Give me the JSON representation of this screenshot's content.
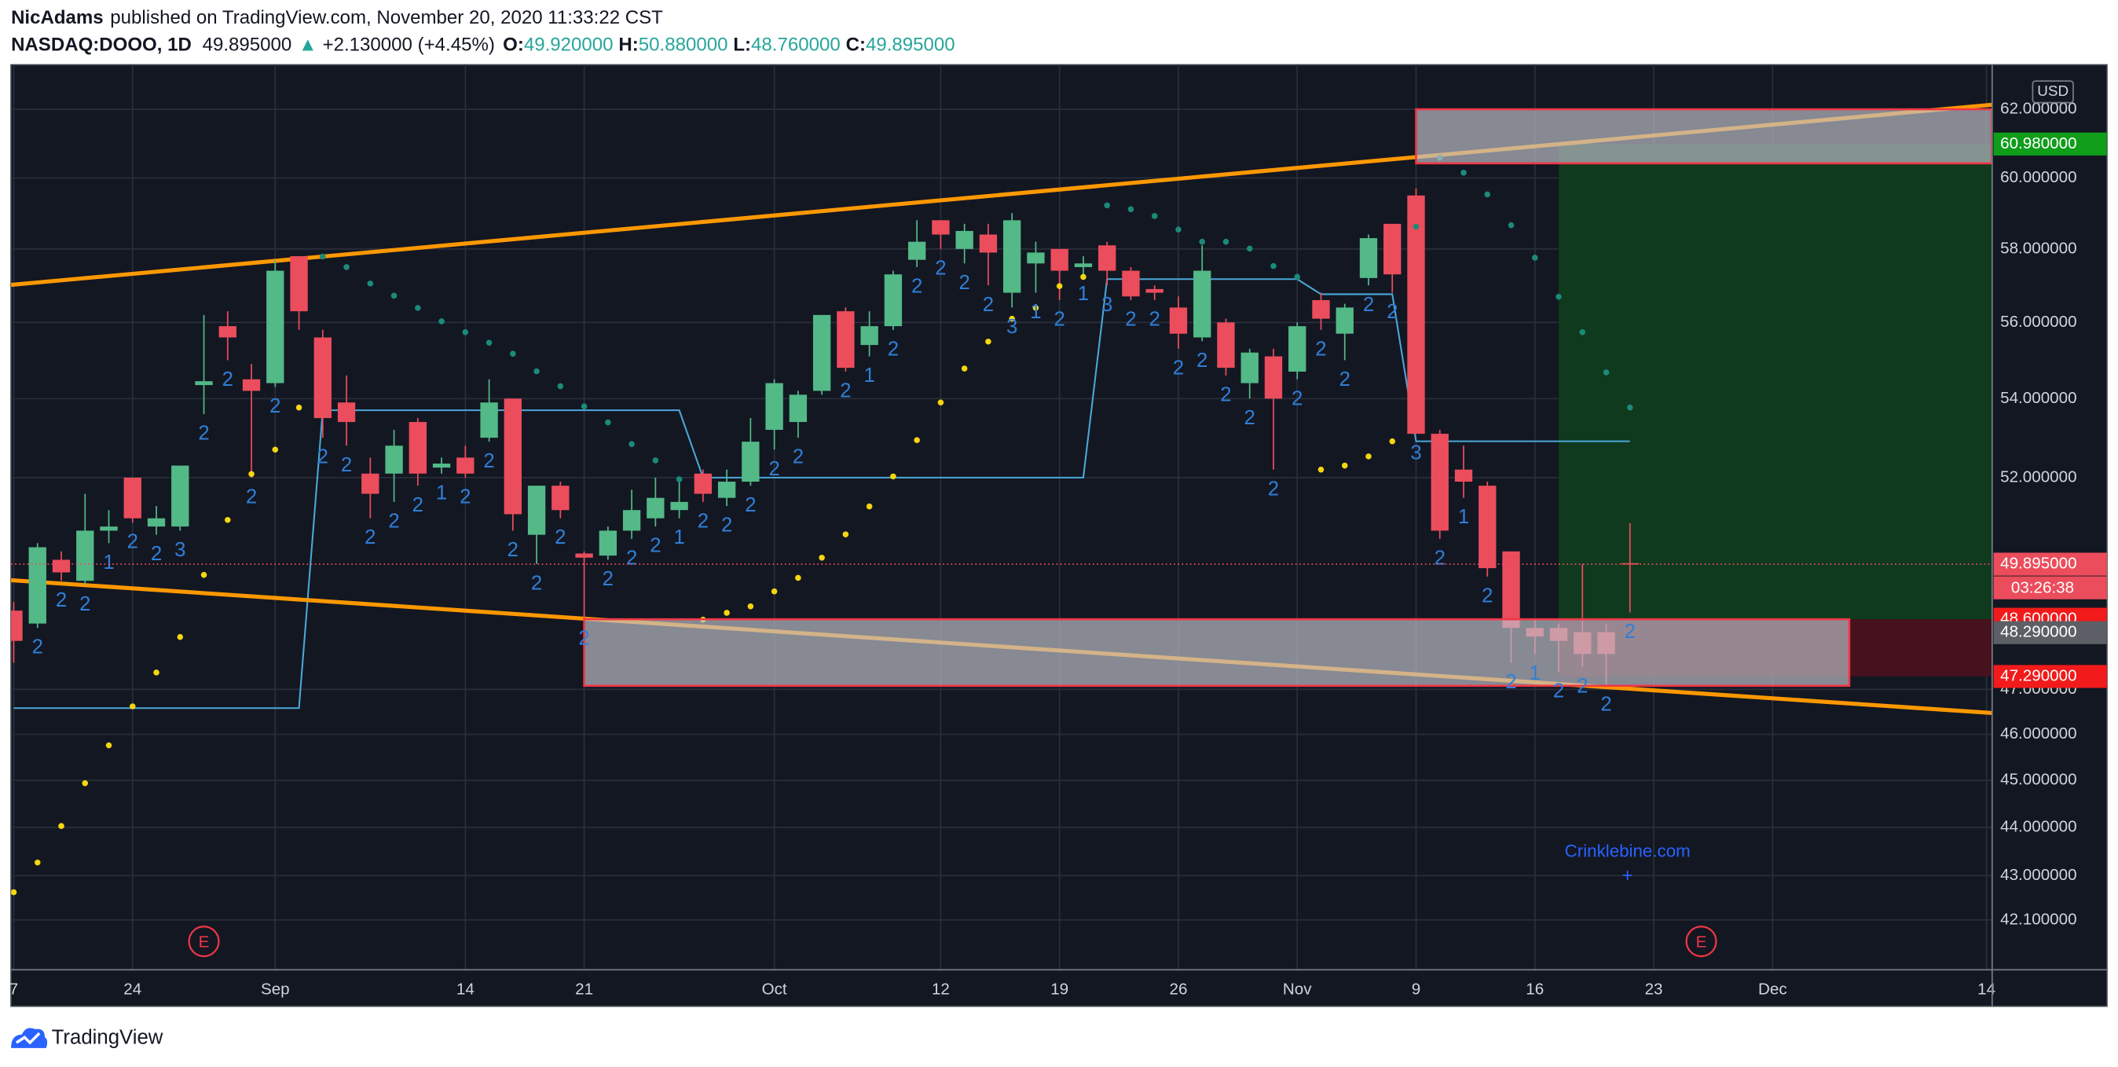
{
  "header": {
    "author": "NicAdams",
    "published": "published on TradingView.com, November 20, 2020 11:33:22 CST",
    "symbol": "NASDAQ:DOOO, 1D",
    "last": "49.895000",
    "arrow": "▲",
    "change": "+2.130000 (+4.45%)",
    "o_label": "O:",
    "o": "49.920000",
    "h_label": "H:",
    "h": "50.880000",
    "l_label": "L:",
    "l": "48.760000",
    "c_label": "C:",
    "c": "49.895000"
  },
  "footer": {
    "brand": "TradingView"
  },
  "chart_data": {
    "type": "candlestick",
    "log": true,
    "grid": true,
    "currency": "USD",
    "ylim": [
      41.11,
      63.33
    ],
    "yticks": [
      {
        "value": 62,
        "label": "62.000000"
      },
      {
        "value": 60,
        "label": "60.000000"
      },
      {
        "value": 58,
        "label": "58.000000"
      },
      {
        "value": 56,
        "label": "56.000000"
      },
      {
        "value": 54,
        "label": "54.000000"
      },
      {
        "value": 52,
        "label": "52.000000"
      },
      {
        "value": 47,
        "label": "47.000000"
      },
      {
        "value": 46,
        "label": "46.000000"
      },
      {
        "value": 45,
        "label": "45.000000"
      },
      {
        "value": 44,
        "label": "44.000000"
      },
      {
        "value": 43,
        "label": "43.000000"
      },
      {
        "value": 42.1,
        "label": "42.100000"
      }
    ],
    "categories": [
      "7",
      null,
      null,
      null,
      null,
      "24",
      null,
      null,
      null,
      null,
      null,
      "Sep",
      null,
      null,
      null,
      null,
      null,
      null,
      null,
      "14",
      null,
      null,
      null,
      null,
      "21",
      null,
      null,
      null,
      null,
      null,
      null,
      null,
      "Oct",
      null,
      null,
      null,
      null,
      null,
      null,
      "12",
      null,
      null,
      null,
      null,
      "19",
      null,
      null,
      null,
      null,
      "26",
      null,
      null,
      null,
      null,
      "Nov",
      null,
      null,
      null,
      null,
      "9",
      null,
      null,
      null,
      null,
      "16",
      null,
      null,
      null,
      null,
      "23",
      null,
      null,
      null,
      null,
      "Dec",
      null,
      null,
      null,
      null,
      null,
      null,
      null,
      null,
      "14"
    ],
    "up_color": "#53b987",
    "down_color": "#eb4d5c",
    "candles": {
      "open": [
        48.8,
        48.5,
        50.0,
        49.5,
        50.7,
        52.0,
        50.8,
        50.8,
        54.35,
        55.9,
        54.5,
        54.4,
        57.8,
        55.6,
        53.9,
        52.1,
        52.1,
        53.4,
        52.25,
        52.5,
        53.0,
        54.0,
        50.6,
        51.8,
        50.15,
        50.1,
        50.7,
        51.0,
        51.2,
        52.1,
        51.5,
        51.9,
        53.2,
        53.4,
        54.2,
        56.3,
        55.4,
        55.9,
        57.7,
        58.8,
        58.0,
        58.4,
        56.8,
        57.6,
        58.0,
        57.5,
        58.1,
        57.4,
        56.9,
        56.4,
        55.6,
        56.0,
        54.4,
        55.1,
        54.7,
        56.6,
        55.7,
        57.2,
        58.7,
        59.5,
        53.1,
        52.2,
        51.8,
        50.2,
        48.4,
        48.4,
        48.3,
        48.3,
        49.92,
        null,
        null,
        null,
        null,
        null,
        null,
        null,
        null,
        null,
        null,
        null,
        null,
        null,
        null,
        null
      ],
      "high": [
        49.0,
        50.4,
        50.2,
        51.6,
        51.2,
        52.0,
        51.3,
        52.3,
        56.2,
        56.3,
        54.9,
        57.7,
        57.8,
        55.8,
        54.6,
        52.5,
        53.2,
        53.5,
        52.5,
        52.8,
        54.5,
        54.0,
        51.8,
        51.9,
        50.2,
        50.8,
        51.7,
        52.0,
        51.9,
        52.2,
        52.2,
        53.5,
        54.5,
        54.2,
        56.2,
        56.4,
        56.3,
        57.4,
        58.8,
        58.8,
        58.7,
        58.7,
        59.0,
        58.2,
        58.0,
        57.8,
        58.2,
        57.5,
        57.0,
        56.7,
        58.1,
        56.1,
        55.3,
        55.3,
        56.0,
        56.8,
        56.5,
        58.4,
        58.7,
        59.7,
        53.2,
        52.8,
        51.9,
        50.2,
        48.6,
        48.5,
        49.9,
        48.5,
        50.88,
        null,
        null,
        null,
        null,
        null,
        null,
        null,
        null,
        null,
        null,
        null,
        null,
        null,
        null,
        null
      ],
      "low": [
        47.6,
        48.4,
        49.5,
        49.4,
        50.4,
        50.9,
        50.6,
        50.7,
        53.6,
        55.0,
        52.0,
        54.3,
        55.8,
        53.0,
        52.8,
        51.0,
        51.4,
        51.8,
        52.1,
        52.0,
        52.9,
        50.7,
        49.9,
        51.0,
        48.6,
        50.0,
        50.5,
        50.8,
        51.0,
        51.4,
        51.3,
        51.8,
        52.7,
        53.0,
        54.1,
        54.7,
        55.1,
        55.8,
        57.5,
        58.0,
        57.6,
        57.0,
        56.4,
        56.8,
        56.6,
        57.3,
        57.0,
        56.6,
        56.6,
        55.3,
        55.5,
        54.6,
        54.0,
        52.2,
        54.5,
        55.8,
        55.0,
        57.0,
        56.8,
        53.1,
        50.5,
        51.5,
        49.6,
        47.6,
        47.8,
        47.4,
        47.5,
        47.1,
        48.76,
        null,
        null,
        null,
        null,
        null,
        null,
        null,
        null,
        null,
        null,
        null,
        null,
        null,
        null,
        null
      ],
      "close": [
        48.1,
        50.3,
        49.7,
        50.7,
        50.8,
        51.0,
        51.0,
        52.3,
        54.45,
        55.6,
        54.2,
        57.4,
        56.3,
        53.5,
        53.4,
        51.6,
        52.8,
        52.1,
        52.35,
        52.1,
        53.9,
        51.1,
        51.8,
        51.2,
        50.05,
        50.7,
        51.2,
        51.5,
        51.4,
        51.6,
        51.9,
        52.9,
        54.4,
        54.1,
        56.2,
        54.8,
        55.9,
        57.3,
        58.2,
        58.4,
        58.5,
        57.9,
        58.8,
        57.9,
        57.4,
        57.6,
        57.4,
        56.7,
        56.8,
        55.7,
        57.4,
        54.8,
        55.2,
        54.0,
        55.9,
        56.1,
        56.4,
        58.3,
        57.3,
        53.1,
        50.7,
        51.9,
        49.8,
        48.4,
        48.2,
        48.1,
        47.8,
        47.8,
        49.895,
        null,
        null,
        null,
        null,
        null,
        null,
        null,
        null,
        null,
        null,
        null,
        null,
        null,
        null,
        null
      ]
    },
    "td_labels": [
      null,
      "2",
      "2",
      "2",
      "1",
      "2",
      "2",
      "3",
      "2",
      "2",
      "2",
      "2",
      null,
      "2",
      "2",
      "2",
      "2",
      "2",
      "1",
      "2",
      "2",
      "2",
      "2",
      "2",
      "2",
      "2",
      "2",
      "2",
      "1",
      "2",
      "2",
      "2",
      "2",
      "2",
      null,
      "2",
      "1",
      "2",
      "2",
      "2",
      "2",
      "2",
      "3",
      "1",
      "2",
      "1",
      "3",
      "2",
      "2",
      "2",
      "2",
      "2",
      "2",
      "2",
      "2",
      "2",
      "2",
      "2",
      "2",
      "3",
      "2",
      "1",
      "2",
      "2",
      "1",
      "2",
      "2",
      "2",
      "2",
      null,
      null,
      null,
      null,
      null,
      null,
      null,
      null,
      null,
      null,
      null,
      null,
      null,
      null,
      null
    ],
    "sar": {
      "up_color": "#f5d60f",
      "down_color": "#1b8a7a",
      "values": [
        42.66,
        43.27,
        44.03,
        44.94,
        45.76,
        46.62,
        47.38,
        48.19,
        49.64,
        50.96,
        52.09,
        52.7,
        53.77,
        57.79,
        57.5,
        57.05,
        56.72,
        56.39,
        56.03,
        55.74,
        55.46,
        55.17,
        54.71,
        54.32,
        53.8,
        53.39,
        52.84,
        52.43,
        51.96,
        48.59,
        48.75,
        48.9,
        49.25,
        49.57,
        50.05,
        50.61,
        51.29,
        52.03,
        52.94,
        53.9,
        54.78,
        55.49,
        56.1,
        56.39,
        56.98,
        57.23,
        59.22,
        59.11,
        58.92,
        58.54,
        58.2,
        58.2,
        58.01,
        57.53,
        57.23,
        52.2,
        52.3,
        52.53,
        52.91,
        58.62,
        60.58,
        60.15,
        59.53,
        58.66,
        57.76,
        56.69,
        55.74,
        54.68,
        53.77,
        null,
        null,
        null,
        null,
        null,
        null,
        null,
        null,
        null,
        null,
        null,
        null,
        null,
        null,
        null
      ]
    },
    "steps": {
      "color": "#4aa8d8",
      "values": [
        46.58,
        46.58,
        46.58,
        46.58,
        46.58,
        46.58,
        46.58,
        46.58,
        46.58,
        46.58,
        46.58,
        46.58,
        46.58,
        53.7,
        53.7,
        53.7,
        53.7,
        53.7,
        53.7,
        53.7,
        53.7,
        53.7,
        53.7,
        53.7,
        53.7,
        53.7,
        53.7,
        53.7,
        53.7,
        52.0,
        52.0,
        52.0,
        52.0,
        52.0,
        52.0,
        52.0,
        52.0,
        52.0,
        52.0,
        52.0,
        52.0,
        52.0,
        52.0,
        52.0,
        52.0,
        52.0,
        57.17,
        57.17,
        57.17,
        57.17,
        57.17,
        57.17,
        57.17,
        57.17,
        57.17,
        56.76,
        56.76,
        56.76,
        56.76,
        52.91,
        52.91,
        52.91,
        52.91,
        52.91,
        52.91,
        52.91,
        52.91,
        52.91,
        52.91,
        null,
        null,
        null,
        null,
        null,
        null,
        null,
        null,
        null,
        null,
        null,
        null,
        null,
        null,
        null
      ]
    },
    "trendlines": [
      {
        "color": "#ff9800",
        "start": [
          0,
          57.02
        ],
        "end": [
          83,
          62.12
        ]
      },
      {
        "color": "#ff9800",
        "start": [
          0,
          49.51
        ],
        "end": [
          83,
          46.48
        ]
      }
    ],
    "boxes": [
      {
        "start": 59,
        "end": 83,
        "top": 62.0,
        "bottom": 60.42
      },
      {
        "start": 24,
        "end": 77,
        "top": 48.6,
        "bottom": 47.08
      }
    ],
    "position": {
      "start": 65,
      "end": 83,
      "entry": 48.6,
      "target": 60.98,
      "stop": 47.29
    },
    "earnings": {
      "label": "E",
      "indices": [
        8,
        71
      ]
    },
    "watermark": "Crinklebine.com",
    "price_labels": [
      {
        "value": 60.98,
        "label": "60.980000",
        "color": "#0f9d1a"
      },
      {
        "value": 49.895,
        "label": "49.895000",
        "color": "#eb4d5c",
        "dotted_line": true
      },
      {
        "value": 48.6,
        "label": "48.600000",
        "color": "#f21a1a"
      },
      {
        "value": 48.29,
        "label": "48.290000",
        "color": "#5d5f66"
      },
      {
        "value": 47.29,
        "label": "47.290000",
        "color": "#f21a1a"
      }
    ],
    "countdown": "03:26:38"
  }
}
